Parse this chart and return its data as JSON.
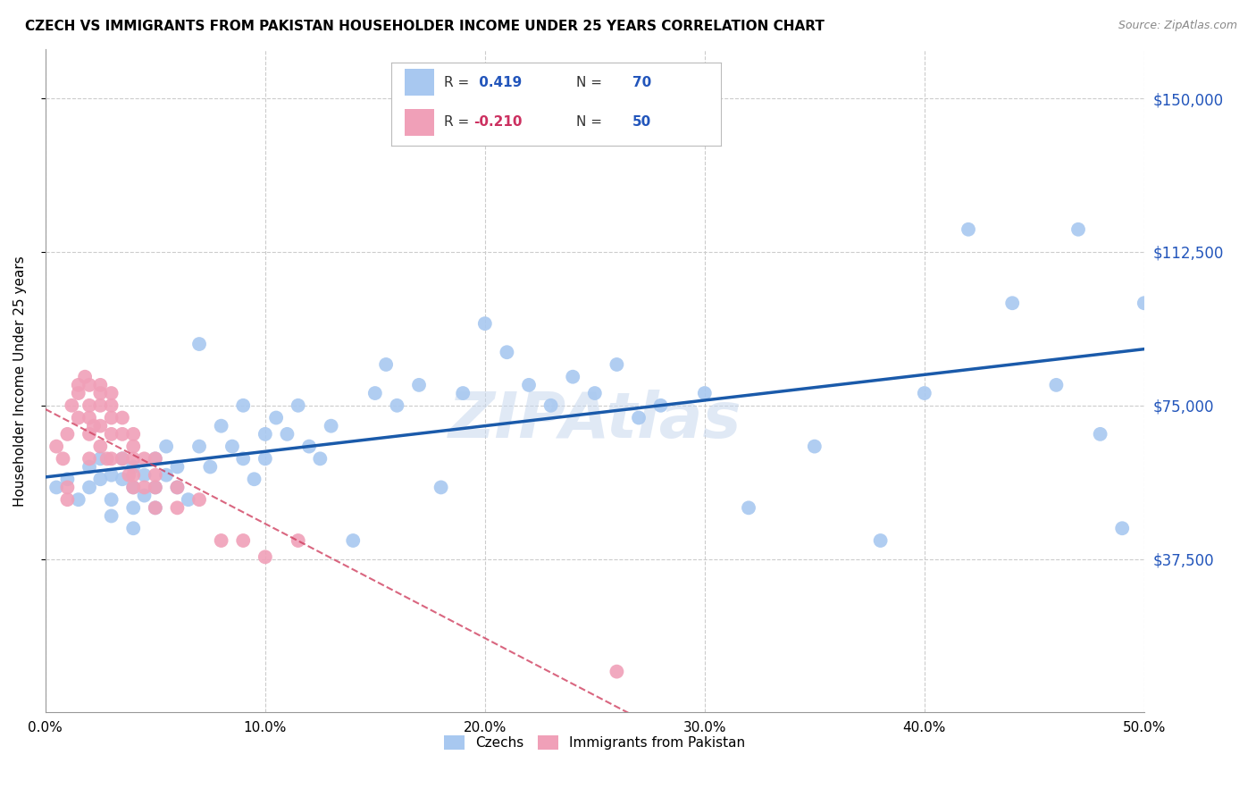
{
  "title": "CZECH VS IMMIGRANTS FROM PAKISTAN HOUSEHOLDER INCOME UNDER 25 YEARS CORRELATION CHART",
  "source": "Source: ZipAtlas.com",
  "ylabel": "Householder Income Under 25 years",
  "xlabel_ticks": [
    "0.0%",
    "10.0%",
    "20.0%",
    "30.0%",
    "40.0%",
    "50.0%"
  ],
  "xlabel_vals": [
    0.0,
    0.1,
    0.2,
    0.3,
    0.4,
    0.5
  ],
  "ytick_labels": [
    "$37,500",
    "$75,000",
    "$112,500",
    "$150,000"
  ],
  "ytick_vals": [
    37500,
    75000,
    112500,
    150000
  ],
  "xlim": [
    0.0,
    0.5
  ],
  "ylim": [
    0,
    162000
  ],
  "czechs_R": 0.419,
  "czechs_N": 70,
  "pakistan_R": -0.21,
  "pakistan_N": 50,
  "czechs_color": "#a8c8f0",
  "pakistan_color": "#f0a0b8",
  "czechs_line_color": "#1a5aaa",
  "pakistan_line_color": "#d04060",
  "legend_label_czechs": "Czechs",
  "legend_label_pakistan": "Immigrants from Pakistan",
  "watermark": "ZIPAtlas",
  "czechs_x": [
    0.005,
    0.01,
    0.015,
    0.02,
    0.02,
    0.025,
    0.025,
    0.03,
    0.03,
    0.03,
    0.035,
    0.035,
    0.04,
    0.04,
    0.04,
    0.04,
    0.045,
    0.045,
    0.05,
    0.05,
    0.05,
    0.055,
    0.055,
    0.06,
    0.06,
    0.065,
    0.07,
    0.07,
    0.075,
    0.08,
    0.085,
    0.09,
    0.09,
    0.095,
    0.1,
    0.1,
    0.105,
    0.11,
    0.115,
    0.12,
    0.125,
    0.13,
    0.14,
    0.15,
    0.155,
    0.16,
    0.17,
    0.18,
    0.19,
    0.2,
    0.21,
    0.22,
    0.23,
    0.24,
    0.25,
    0.26,
    0.27,
    0.28,
    0.3,
    0.32,
    0.35,
    0.38,
    0.4,
    0.42,
    0.44,
    0.46,
    0.47,
    0.48,
    0.49,
    0.5
  ],
  "czechs_y": [
    55000,
    57000,
    52000,
    60000,
    55000,
    62000,
    57000,
    58000,
    52000,
    48000,
    62000,
    57000,
    55000,
    60000,
    50000,
    45000,
    58000,
    53000,
    62000,
    55000,
    50000,
    65000,
    58000,
    60000,
    55000,
    52000,
    90000,
    65000,
    60000,
    70000,
    65000,
    75000,
    62000,
    57000,
    68000,
    62000,
    72000,
    68000,
    75000,
    65000,
    62000,
    70000,
    42000,
    78000,
    85000,
    75000,
    80000,
    55000,
    78000,
    95000,
    88000,
    80000,
    75000,
    82000,
    78000,
    85000,
    72000,
    75000,
    78000,
    50000,
    65000,
    42000,
    78000,
    118000,
    100000,
    80000,
    118000,
    68000,
    45000,
    100000
  ],
  "pakistan_x": [
    0.005,
    0.008,
    0.01,
    0.01,
    0.01,
    0.012,
    0.015,
    0.015,
    0.015,
    0.018,
    0.02,
    0.02,
    0.02,
    0.02,
    0.02,
    0.022,
    0.025,
    0.025,
    0.025,
    0.025,
    0.025,
    0.028,
    0.03,
    0.03,
    0.03,
    0.03,
    0.03,
    0.035,
    0.035,
    0.035,
    0.038,
    0.04,
    0.04,
    0.04,
    0.04,
    0.04,
    0.045,
    0.045,
    0.05,
    0.05,
    0.05,
    0.05,
    0.06,
    0.06,
    0.07,
    0.08,
    0.09,
    0.1,
    0.115,
    0.26
  ],
  "pakistan_y": [
    65000,
    62000,
    68000,
    55000,
    52000,
    75000,
    80000,
    78000,
    72000,
    82000,
    80000,
    75000,
    72000,
    68000,
    62000,
    70000,
    80000,
    78000,
    75000,
    70000,
    65000,
    62000,
    78000,
    75000,
    72000,
    68000,
    62000,
    72000,
    68000,
    62000,
    58000,
    68000,
    65000,
    62000,
    58000,
    55000,
    62000,
    55000,
    62000,
    58000,
    55000,
    50000,
    55000,
    50000,
    52000,
    42000,
    42000,
    38000,
    42000,
    10000
  ],
  "background_color": "#ffffff",
  "grid_color": "#cccccc"
}
